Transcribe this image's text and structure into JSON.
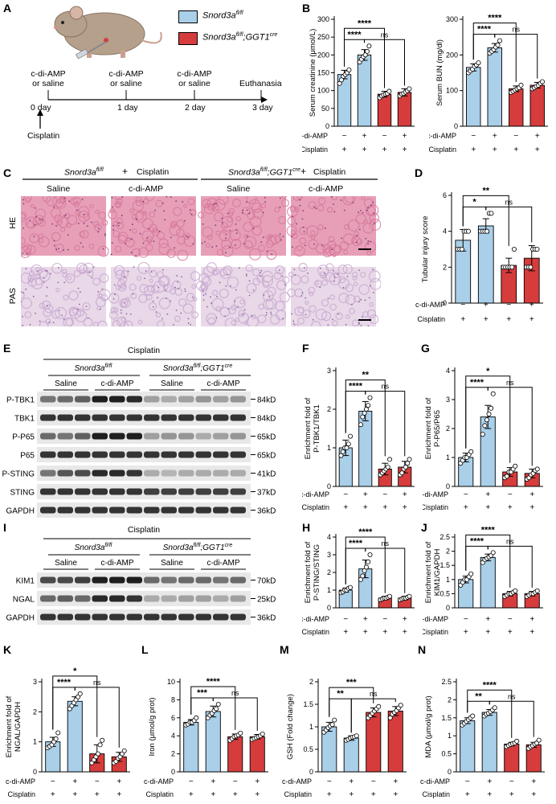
{
  "colors": {
    "control": "#a9cfe9",
    "ko": "#d63c3c",
    "he": "#e79fb8",
    "he_dark": "#d6789a",
    "pas": "#e8d8e8",
    "pas_dark": "#c8a8d0",
    "band": "#1a1a1a"
  },
  "panel_letters": {
    "A": "A",
    "B": "B",
    "C": "C",
    "D": "D",
    "E": "E",
    "F": "F",
    "G": "G",
    "H": "H",
    "I": "I",
    "J": "J",
    "K": "K",
    "L": "L",
    "M": "M",
    "N": "N"
  },
  "panelA": {
    "legend": [
      "Snord3a^fl/fl",
      "Snord3a^fl/fl;GGT1^cre"
    ],
    "legend_main": [
      "Snord3a",
      "Snord3a"
    ],
    "legend_sup": [
      "fl/fl",
      "fl/fl"
    ],
    "legend_sup2": [
      "",
      "GGT1"
    ],
    "legend_sup3": [
      "",
      "cre"
    ],
    "tx": [
      "c-di-AMP",
      "or saline"
    ],
    "days": [
      "0 day",
      "1 day",
      "2 day",
      "3 day"
    ],
    "euthanasia": "Euthanasia",
    "cisplatin": "Cisplatin"
  },
  "row_labels": {
    "cdiamp": "c-di-AMP",
    "cisplatin": "Cisplatin",
    "minus": "−",
    "plus": "+"
  },
  "panelC": {
    "genotype1": "Snord3a",
    "genotype1_sup": "fl/fl",
    "plus": "+",
    "cisplatin": "Cisplatin",
    "genotype2": "Snord3a",
    "genotype2_sup": "fl/fl",
    "genotype2_mid": ";GGT1",
    "genotype2_sup2": "cre",
    "cols": [
      "Saline",
      "c-di-AMP",
      "Saline",
      "c-di-AMP"
    ],
    "rows": [
      "HE",
      "PAS"
    ]
  },
  "blotE": {
    "title": "Cisplatin",
    "g1": "Snord3a",
    "g1_sup": "fl/fl",
    "g2": "Snord3a",
    "g2_sup": "fl/fl",
    "g2_mid": ";GGT1",
    "g2_sup2": "cre",
    "sub": [
      "Saline",
      "c-di-AMP",
      "Saline",
      "c-di-AMP"
    ],
    "rows": [
      {
        "name": "P-TBK1",
        "kd": "84kD",
        "levels": [
          0.55,
          0.6,
          0.65,
          0.95,
          0.95,
          0.9,
          0.35,
          0.3,
          0.35,
          0.4,
          0.35,
          0.4
        ]
      },
      {
        "name": "TBK1",
        "kd": "84kD",
        "levels": [
          0.85,
          0.85,
          0.85,
          0.85,
          0.85,
          0.85,
          0.85,
          0.85,
          0.85,
          0.85,
          0.85,
          0.85
        ]
      },
      {
        "name": "P-P65",
        "kd": "65kD",
        "levels": [
          0.6,
          0.55,
          0.65,
          0.95,
          0.95,
          0.95,
          0.35,
          0.4,
          0.4,
          0.3,
          0.35,
          0.4
        ]
      },
      {
        "name": "P65",
        "kd": "65kD",
        "levels": [
          0.85,
          0.85,
          0.85,
          0.85,
          0.85,
          0.85,
          0.85,
          0.85,
          0.85,
          0.85,
          0.85,
          0.85
        ]
      },
      {
        "name": "P-STING",
        "kd": "41kD",
        "levels": [
          0.55,
          0.7,
          0.75,
          0.9,
          0.9,
          0.85,
          0.3,
          0.25,
          0.3,
          0.3,
          0.3,
          0.3
        ]
      },
      {
        "name": "STING",
        "kd": "37kD",
        "levels": [
          0.85,
          0.85,
          0.85,
          0.85,
          0.85,
          0.85,
          0.8,
          0.8,
          0.8,
          0.8,
          0.8,
          0.8
        ]
      },
      {
        "name": "GAPDH",
        "kd": "36kD",
        "levels": [
          0.85,
          0.85,
          0.85,
          0.85,
          0.85,
          0.85,
          0.85,
          0.85,
          0.85,
          0.85,
          0.85,
          0.85
        ]
      }
    ]
  },
  "blotI": {
    "title": "Cisplatin",
    "g1": "Snord3a",
    "g1_sup": "fl/fl",
    "g2": "Snord3a",
    "g2_sup": "fl/fl",
    "g2_mid": ";GGT1",
    "g2_sup2": "cre",
    "sub": [
      "Saline",
      "c-di-AMP",
      "Saline",
      "c-di-AMP"
    ],
    "rows": [
      {
        "name": "KIM1",
        "kd": "70kD",
        "levels": [
          0.75,
          0.75,
          0.8,
          0.95,
          0.95,
          0.95,
          0.6,
          0.55,
          0.6,
          0.6,
          0.55,
          0.6
        ]
      },
      {
        "name": "NGAL",
        "kd": "25kD",
        "levels": [
          0.6,
          0.65,
          0.6,
          0.9,
          0.9,
          0.85,
          0.3,
          0.3,
          0.35,
          0.35,
          0.3,
          0.35
        ]
      },
      {
        "name": "GAPDH",
        "kd": "36kD",
        "levels": [
          0.85,
          0.85,
          0.85,
          0.85,
          0.85,
          0.85,
          0.85,
          0.85,
          0.85,
          0.85,
          0.85,
          0.85
        ]
      }
    ]
  },
  "chart_data": [
    {
      "id": "B1",
      "type": "bar",
      "ylabel": "Serum creatinine (μmol/L)",
      "ylim": [
        0,
        300
      ],
      "ticks": [
        0,
        50,
        100,
        150,
        200,
        250,
        300
      ],
      "means": [
        145,
        200,
        90,
        95
      ],
      "err": [
        12,
        15,
        8,
        10
      ],
      "points": [
        [
          120,
          130,
          140,
          145,
          150,
          158
        ],
        [
          180,
          188,
          195,
          200,
          210,
          225
        ],
        [
          80,
          85,
          88,
          90,
          92,
          98
        ],
        [
          85,
          90,
          92,
          96,
          100,
          105
        ]
      ],
      "sig": [
        {
          "a": 0,
          "b": 1,
          "label": "****"
        },
        {
          "a": 1,
          "b": 3,
          "label": "ns"
        },
        {
          "a": 0,
          "b": 2,
          "label": "****"
        }
      ]
    },
    {
      "id": "B2",
      "type": "bar",
      "ylabel": "Serum BUN (mg/dl)",
      "ylim": [
        0,
        300
      ],
      "ticks": [
        0,
        100,
        200,
        300
      ],
      "means": [
        165,
        220,
        105,
        115
      ],
      "err": [
        10,
        12,
        8,
        8
      ],
      "points": [
        [
          150,
          155,
          160,
          168,
          172,
          178
        ],
        [
          205,
          210,
          215,
          222,
          228,
          240
        ],
        [
          95,
          98,
          102,
          105,
          108,
          115
        ],
        [
          105,
          108,
          112,
          115,
          120,
          125
        ]
      ],
      "sig": [
        {
          "a": 0,
          "b": 1,
          "label": "****"
        },
        {
          "a": 1,
          "b": 3,
          "label": "ns"
        },
        {
          "a": 0,
          "b": 2,
          "label": "****"
        }
      ]
    },
    {
      "id": "D",
      "type": "bar",
      "ylabel": "Tubular injury score",
      "ylim": [
        0,
        6
      ],
      "ticks": [
        0,
        2,
        4,
        6
      ],
      "means": [
        3.5,
        4.3,
        2.1,
        2.5
      ],
      "err": [
        0.6,
        0.4,
        0.4,
        0.7
      ],
      "points": [
        [
          3,
          3,
          3,
          4,
          4,
          4
        ],
        [
          4,
          4,
          4,
          4,
          5,
          5
        ],
        [
          2,
          2,
          2,
          2,
          2,
          3
        ],
        [
          2,
          2,
          2,
          3,
          3,
          3
        ]
      ],
      "sig": [
        {
          "a": 0,
          "b": 1,
          "label": "*"
        },
        {
          "a": 1,
          "b": 3,
          "label": "ns"
        },
        {
          "a": 0,
          "b": 2,
          "label": "**"
        }
      ]
    },
    {
      "id": "F",
      "type": "bar",
      "ylabel": "Enrichment fold of P-TBK1/TBK1",
      "ylim": [
        0,
        3
      ],
      "ticks": [
        0,
        1,
        2,
        3
      ],
      "means": [
        1.0,
        1.95,
        0.45,
        0.5
      ],
      "err": [
        0.2,
        0.25,
        0.15,
        0.15
      ],
      "points": [
        [
          0.8,
          0.9,
          1.0,
          1.0,
          1.1,
          1.3
        ],
        [
          1.6,
          1.8,
          1.9,
          2.0,
          2.1,
          2.3
        ],
        [
          0.3,
          0.35,
          0.4,
          0.45,
          0.5,
          0.7
        ],
        [
          0.3,
          0.35,
          0.45,
          0.5,
          0.6,
          0.7
        ]
      ],
      "sig": [
        {
          "a": 0,
          "b": 1,
          "label": "****"
        },
        {
          "a": 1,
          "b": 3,
          "label": "ns"
        },
        {
          "a": 0,
          "b": 2,
          "label": "**"
        }
      ]
    },
    {
      "id": "G",
      "type": "bar",
      "ylabel": "Enrichment fold of P-P65/P65",
      "ylim": [
        0,
        4
      ],
      "ticks": [
        0,
        1,
        2,
        3,
        4
      ],
      "means": [
        1.0,
        2.4,
        0.5,
        0.45
      ],
      "err": [
        0.15,
        0.4,
        0.15,
        0.15
      ],
      "points": [
        [
          0.8,
          0.9,
          1.0,
          1.0,
          1.1,
          1.2
        ],
        [
          1.8,
          2.1,
          2.3,
          2.5,
          2.7,
          3.2
        ],
        [
          0.3,
          0.35,
          0.5,
          0.5,
          0.6,
          0.7
        ],
        [
          0.25,
          0.3,
          0.4,
          0.45,
          0.55,
          0.6
        ]
      ],
      "sig": [
        {
          "a": 0,
          "b": 1,
          "label": "****"
        },
        {
          "a": 1,
          "b": 3,
          "label": "ns"
        },
        {
          "a": 0,
          "b": 2,
          "label": "*"
        }
      ]
    },
    {
      "id": "H",
      "type": "bar",
      "ylabel": "Enrichment fold of P-STING/STING",
      "ylim": [
        0,
        4
      ],
      "ticks": [
        0,
        1,
        2,
        3,
        4
      ],
      "means": [
        1.0,
        2.2,
        0.55,
        0.55
      ],
      "err": [
        0.12,
        0.5,
        0.1,
        0.1
      ],
      "points": [
        [
          0.85,
          0.9,
          1.0,
          1.0,
          1.1,
          1.15
        ],
        [
          1.6,
          1.8,
          2.1,
          2.3,
          2.6,
          3.0
        ],
        [
          0.45,
          0.5,
          0.55,
          0.55,
          0.6,
          0.65
        ],
        [
          0.45,
          0.5,
          0.55,
          0.55,
          0.6,
          0.65
        ]
      ],
      "sig": [
        {
          "a": 0,
          "b": 1,
          "label": "****"
        },
        {
          "a": 1,
          "b": 3,
          "label": "ns"
        },
        {
          "a": 0,
          "b": 2,
          "label": "****"
        }
      ]
    },
    {
      "id": "J",
      "type": "bar",
      "ylabel": "Enrichment fold of KIM1/GAPDH",
      "ylim": [
        0,
        2.5
      ],
      "ticks": [
        0.0,
        0.5,
        1.0,
        1.5,
        2.0,
        2.5
      ],
      "means": [
        1.0,
        1.78,
        0.5,
        0.5
      ],
      "err": [
        0.12,
        0.12,
        0.08,
        0.08
      ],
      "points": [
        [
          0.8,
          0.9,
          1.0,
          1.0,
          1.1,
          1.2
        ],
        [
          1.6,
          1.7,
          1.75,
          1.8,
          1.85,
          1.95
        ],
        [
          0.4,
          0.45,
          0.5,
          0.5,
          0.55,
          0.6
        ],
        [
          0.4,
          0.45,
          0.5,
          0.5,
          0.55,
          0.6
        ]
      ],
      "sig": [
        {
          "a": 0,
          "b": 1,
          "label": "****"
        },
        {
          "a": 1,
          "b": 3,
          "label": "ns"
        },
        {
          "a": 0,
          "b": 2,
          "label": "****"
        }
      ]
    },
    {
      "id": "K",
      "type": "bar",
      "ylabel": "Enrichment fold of NGAL/GAPDH",
      "ylim": [
        0,
        3
      ],
      "ticks": [
        0,
        1,
        2,
        3
      ],
      "means": [
        1.0,
        2.35,
        0.6,
        0.5
      ],
      "err": [
        0.15,
        0.15,
        0.3,
        0.15
      ],
      "points": [
        [
          0.8,
          0.85,
          0.9,
          1.0,
          1.1,
          1.3
        ],
        [
          2.1,
          2.2,
          2.3,
          2.4,
          2.5,
          2.6
        ],
        [
          0.3,
          0.4,
          0.5,
          0.6,
          0.9,
          1.05
        ],
        [
          0.3,
          0.35,
          0.45,
          0.5,
          0.6,
          0.7
        ]
      ],
      "sig": [
        {
          "a": 0,
          "b": 1,
          "label": "****"
        },
        {
          "a": 1,
          "b": 3,
          "label": "ns"
        },
        {
          "a": 0,
          "b": 2,
          "label": "*"
        }
      ]
    },
    {
      "id": "L",
      "type": "bar",
      "ylabel": "Iron (μmol/g prot)",
      "ylim": [
        0,
        10
      ],
      "ticks": [
        0,
        2,
        4,
        6,
        8,
        10
      ],
      "means": [
        5.5,
        6.7,
        3.9,
        3.9
      ],
      "err": [
        0.3,
        0.6,
        0.3,
        0.25
      ],
      "points": [
        [
          5.2,
          5.3,
          5.5,
          5.5,
          5.7,
          6.0
        ],
        [
          6.0,
          6.3,
          6.5,
          6.8,
          7.0,
          7.5
        ],
        [
          3.5,
          3.7,
          3.9,
          4.0,
          4.1,
          4.3
        ],
        [
          3.6,
          3.7,
          3.8,
          3.9,
          4.0,
          4.2
        ]
      ],
      "sig": [
        {
          "a": 0,
          "b": 1,
          "label": "***"
        },
        {
          "a": 1,
          "b": 3,
          "label": "ns"
        },
        {
          "a": 0,
          "b": 2,
          "label": "****"
        }
      ]
    },
    {
      "id": "M",
      "type": "bar",
      "ylabel": "GSH (Fold change)",
      "ylim": [
        0,
        2.0
      ],
      "ticks": [
        0.0,
        0.5,
        1.0,
        1.5,
        2.0
      ],
      "means": [
        1.0,
        0.75,
        1.32,
        1.35
      ],
      "err": [
        0.1,
        0.05,
        0.1,
        0.1
      ],
      "points": [
        [
          0.88,
          0.93,
          0.98,
          1.02,
          1.05,
          1.15
        ],
        [
          0.7,
          0.72,
          0.75,
          0.77,
          0.78,
          0.8
        ],
        [
          1.2,
          1.25,
          1.3,
          1.35,
          1.4,
          1.45
        ],
        [
          1.2,
          1.28,
          1.32,
          1.36,
          1.42,
          1.48
        ]
      ],
      "sig": [
        {
          "a": 0,
          "b": 1,
          "label": "**"
        },
        {
          "a": 1,
          "b": 3,
          "label": "ns"
        },
        {
          "a": 0,
          "b": 2,
          "label": "***"
        }
      ]
    },
    {
      "id": "N",
      "type": "bar",
      "ylabel": "MDA (μmol/g prot)",
      "ylim": [
        0,
        2.5
      ],
      "ticks": [
        0.0,
        0.5,
        1.0,
        1.5,
        2.0,
        2.5
      ],
      "means": [
        1.42,
        1.65,
        0.77,
        0.75
      ],
      "err": [
        0.08,
        0.08,
        0.05,
        0.07
      ],
      "points": [
        [
          1.3,
          1.35,
          1.4,
          1.45,
          1.5,
          1.55
        ],
        [
          1.55,
          1.6,
          1.63,
          1.67,
          1.72,
          1.78
        ],
        [
          0.7,
          0.73,
          0.76,
          0.78,
          0.8,
          0.85
        ],
        [
          0.65,
          0.7,
          0.73,
          0.77,
          0.8,
          0.88
        ]
      ],
      "sig": [
        {
          "a": 0,
          "b": 1,
          "label": "**"
        },
        {
          "a": 1,
          "b": 3,
          "label": "ns"
        },
        {
          "a": 0,
          "b": 2,
          "label": "****"
        }
      ]
    }
  ]
}
